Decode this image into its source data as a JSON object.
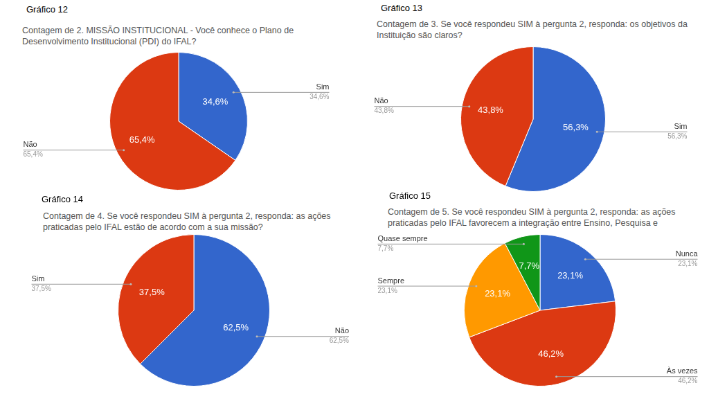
{
  "chart_data": [
    {
      "type": "pie",
      "subtitle": "Gráfico 12",
      "title": [
        "Contagem de 2. MISSÃO INSTITUCIONAL - Você conhece o Plano de",
        "Desenvolvimento Institucional (PDI) do IFAL?"
      ],
      "categories": [
        "Sim",
        "Não"
      ],
      "values": [
        34.6,
        65.4
      ],
      "value_labels": [
        "34,6%",
        "65,4%"
      ],
      "colors": [
        "#3366cc",
        "#dc3912"
      ],
      "data_labels": true
    },
    {
      "type": "pie",
      "subtitle": "Gráfico 13",
      "title": [
        "Contagem de 3. Se você respondeu SIM à pergunta 2, responda: os objetivos da",
        "Instituição são claros?"
      ],
      "categories": [
        "Sim",
        "Não"
      ],
      "values": [
        56.3,
        43.8
      ],
      "value_labels": [
        "56,3%",
        "43,8%"
      ],
      "colors": [
        "#3366cc",
        "#dc3912"
      ],
      "data_labels": true
    },
    {
      "type": "pie",
      "subtitle": "Gráfico 14",
      "title": [
        "Contagem de 4. Se você respondeu SIM à pergunta 2, responda: as ações",
        "praticadas pelo IFAL estão de acordo com a sua missão?"
      ],
      "categories": [
        "Não",
        "Sim"
      ],
      "values": [
        62.5,
        37.5
      ],
      "value_labels": [
        "62,5%",
        "37,5%"
      ],
      "colors": [
        "#3366cc",
        "#dc3912"
      ],
      "data_labels": true
    },
    {
      "type": "pie",
      "subtitle": "Gráfico 15",
      "title": [
        "Contagem de 5. Se você respondeu SIM à pergunta 2, responda: as ações",
        "praticadas pelo IFAL favorecem a integração entre Ensino, Pesquisa e"
      ],
      "categories": [
        "Nunca",
        "Às vezes",
        "Sempre",
        "Quase sempre"
      ],
      "values": [
        23.1,
        46.2,
        23.1,
        7.7
      ],
      "value_labels": [
        "23,1%",
        "46,2%",
        "23,1%",
        "7,7%"
      ],
      "colors": [
        "#3366cc",
        "#dc3912",
        "#ff9900",
        "#109618"
      ],
      "data_labels": true
    }
  ]
}
